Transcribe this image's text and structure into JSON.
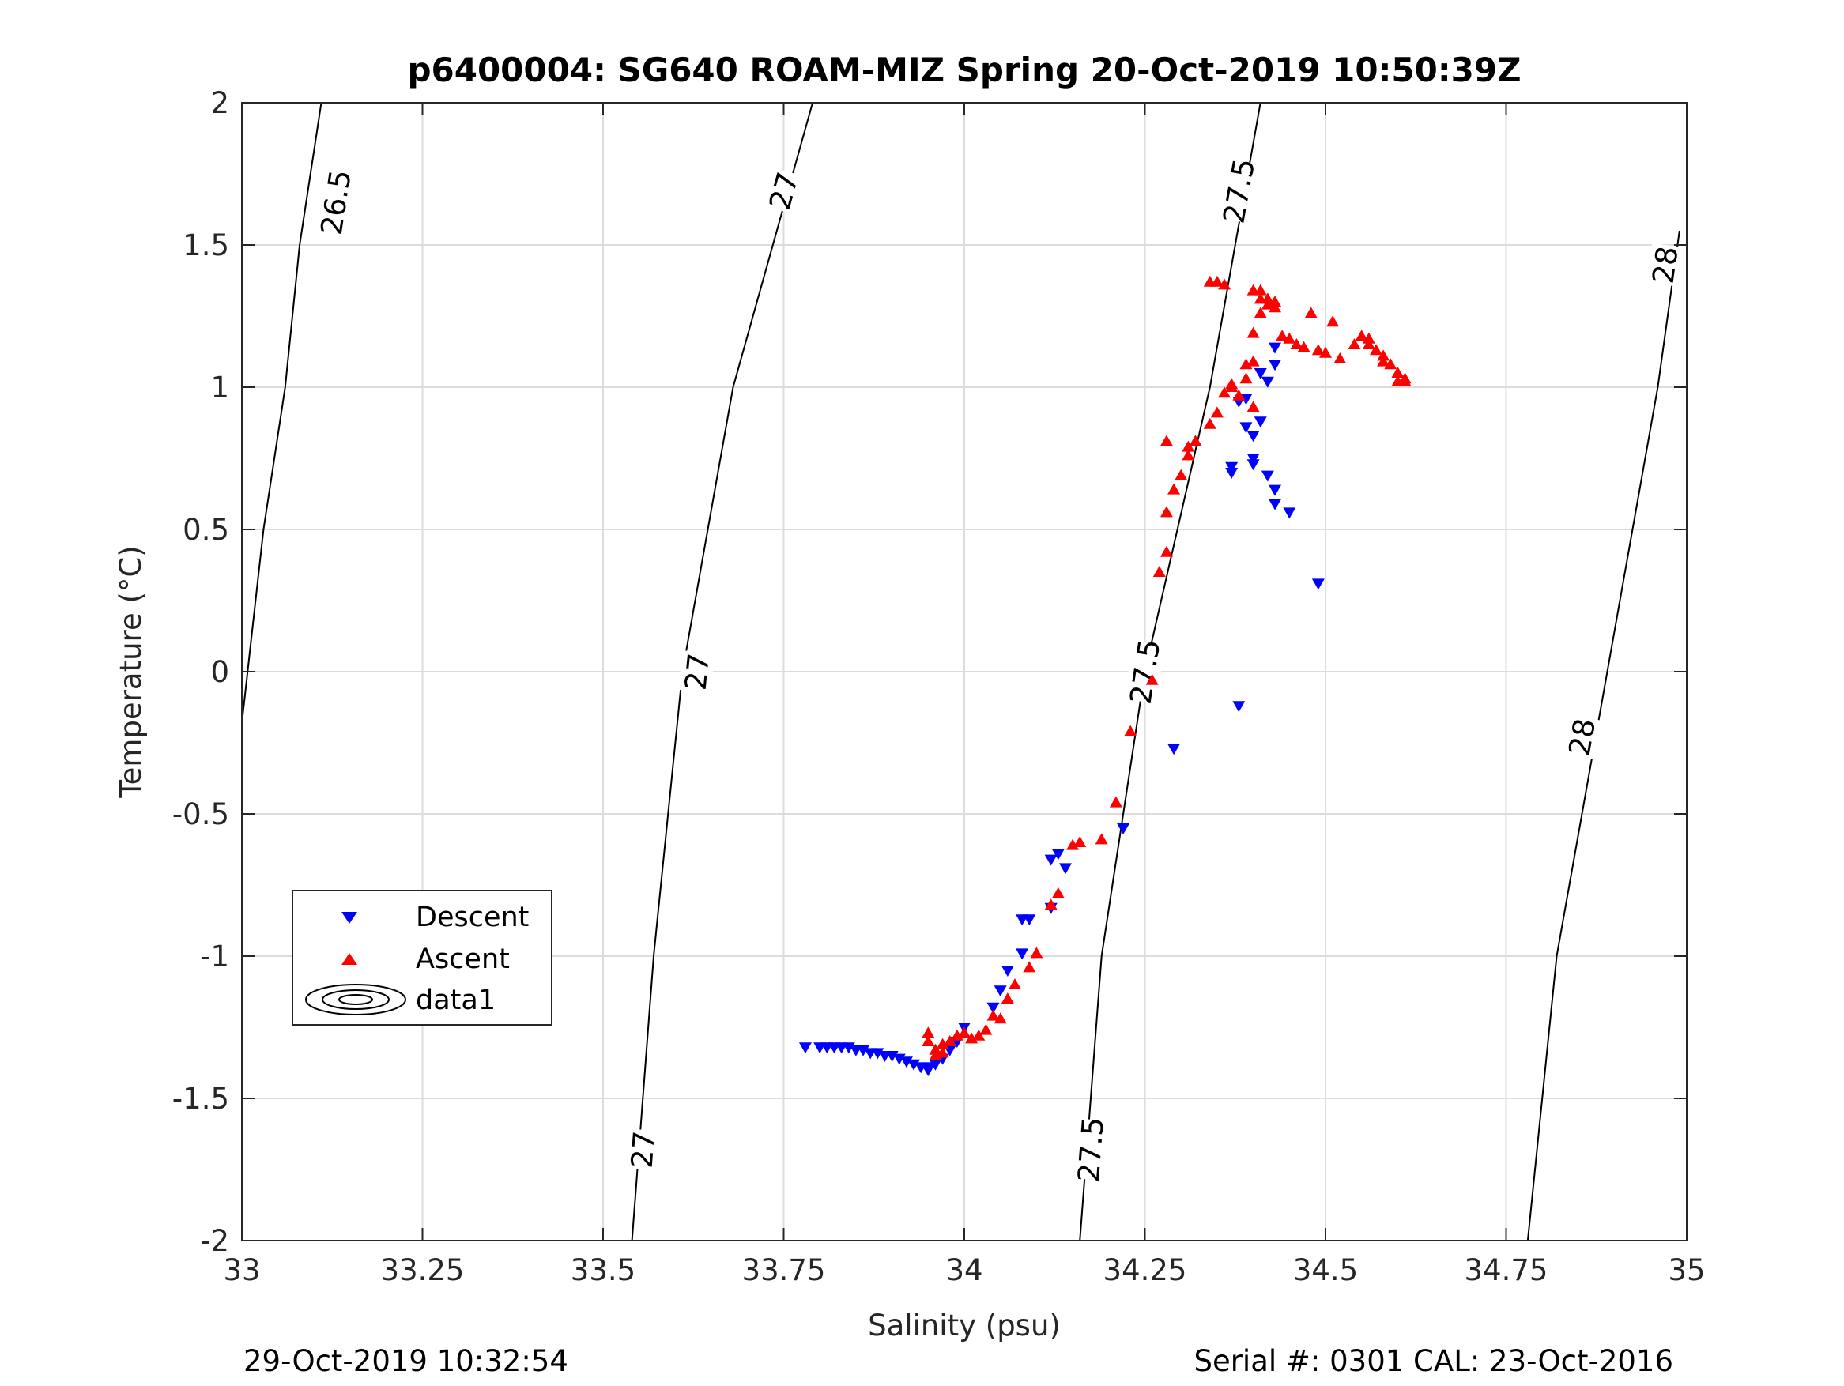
{
  "chart_data": {
    "type": "scatter",
    "title": "p6400004: SG640 ROAM-MIZ Spring 20-Oct-2019 10:50:39Z",
    "xlabel": "Salinity (psu)",
    "ylabel": "Temperature (°C)",
    "xlim": [
      33,
      35
    ],
    "ylim": [
      -2,
      2
    ],
    "xticks": [
      33,
      33.25,
      33.5,
      33.75,
      34,
      34.25,
      34.5,
      34.75,
      35
    ],
    "xtick_labels": [
      "33",
      "33.25",
      "33.5",
      "33.75",
      "34",
      "34.25",
      "34.5",
      "34.75",
      "35"
    ],
    "yticks": [
      -2,
      -1.5,
      -1,
      -0.5,
      0,
      0.5,
      1,
      1.5,
      2
    ],
    "ytick_labels": [
      "-2",
      "-1.5",
      "-1",
      "-0.5",
      "0",
      "0.5",
      "1",
      "1.5",
      "2"
    ],
    "grid": true,
    "legend_position": "lower-left",
    "footer_left": "29-Oct-2019 10:32:54",
    "footer_right": "Serial #: 0301  CAL: 23-Oct-2016",
    "series": [
      {
        "name": "Descent",
        "marker": "triangle-down",
        "color": "#0000ff",
        "points": [
          [
            33.78,
            -1.32
          ],
          [
            33.8,
            -1.32
          ],
          [
            33.81,
            -1.32
          ],
          [
            33.82,
            -1.32
          ],
          [
            33.83,
            -1.32
          ],
          [
            33.84,
            -1.32
          ],
          [
            33.85,
            -1.33
          ],
          [
            33.86,
            -1.33
          ],
          [
            33.87,
            -1.34
          ],
          [
            33.88,
            -1.34
          ],
          [
            33.89,
            -1.35
          ],
          [
            33.9,
            -1.35
          ],
          [
            33.91,
            -1.36
          ],
          [
            33.92,
            -1.37
          ],
          [
            33.93,
            -1.38
          ],
          [
            33.94,
            -1.39
          ],
          [
            33.95,
            -1.39
          ],
          [
            33.95,
            -1.4
          ],
          [
            33.96,
            -1.38
          ],
          [
            33.97,
            -1.36
          ],
          [
            33.98,
            -1.33
          ],
          [
            33.99,
            -1.3
          ],
          [
            34.0,
            -1.25
          ],
          [
            34.04,
            -1.18
          ],
          [
            34.05,
            -1.12
          ],
          [
            34.06,
            -1.05
          ],
          [
            34.08,
            -0.99
          ],
          [
            34.08,
            -0.87
          ],
          [
            34.09,
            -0.87
          ],
          [
            34.12,
            -0.83
          ],
          [
            34.12,
            -0.66
          ],
          [
            34.13,
            -0.64
          ],
          [
            34.14,
            -0.69
          ],
          [
            34.22,
            -0.55
          ],
          [
            34.29,
            -0.27
          ],
          [
            34.38,
            -0.12
          ],
          [
            34.38,
            0.95
          ],
          [
            34.39,
            0.96
          ],
          [
            34.39,
            0.86
          ],
          [
            34.4,
            0.83
          ],
          [
            34.41,
            0.88
          ],
          [
            34.4,
            0.75
          ],
          [
            34.4,
            0.73
          ],
          [
            34.37,
            0.72
          ],
          [
            34.37,
            0.7
          ],
          [
            34.42,
            0.69
          ],
          [
            34.43,
            0.64
          ],
          [
            34.43,
            0.59
          ],
          [
            34.45,
            0.56
          ],
          [
            34.41,
            1.05
          ],
          [
            34.42,
            1.02
          ],
          [
            34.43,
            1.08
          ],
          [
            34.43,
            1.14
          ],
          [
            34.49,
            0.31
          ]
        ]
      },
      {
        "name": "Ascent",
        "marker": "triangle-up",
        "color": "#ff0000",
        "points": [
          [
            33.95,
            -1.27
          ],
          [
            33.95,
            -1.3
          ],
          [
            33.96,
            -1.33
          ],
          [
            33.96,
            -1.35
          ],
          [
            33.97,
            -1.34
          ],
          [
            33.97,
            -1.31
          ],
          [
            33.98,
            -1.3
          ],
          [
            33.99,
            -1.28
          ],
          [
            34.0,
            -1.27
          ],
          [
            34.01,
            -1.29
          ],
          [
            34.02,
            -1.28
          ],
          [
            34.03,
            -1.26
          ],
          [
            34.04,
            -1.21
          ],
          [
            34.05,
            -1.22
          ],
          [
            34.06,
            -1.15
          ],
          [
            34.07,
            -1.1
          ],
          [
            34.09,
            -1.04
          ],
          [
            34.1,
            -0.99
          ],
          [
            34.12,
            -0.82
          ],
          [
            34.13,
            -0.78
          ],
          [
            34.15,
            -0.61
          ],
          [
            34.16,
            -0.6
          ],
          [
            34.19,
            -0.59
          ],
          [
            34.21,
            -0.46
          ],
          [
            34.23,
            -0.21
          ],
          [
            34.26,
            -0.03
          ],
          [
            34.27,
            0.35
          ],
          [
            34.28,
            0.42
          ],
          [
            34.28,
            0.56
          ],
          [
            34.29,
            0.64
          ],
          [
            34.3,
            0.69
          ],
          [
            34.31,
            0.76
          ],
          [
            34.31,
            0.79
          ],
          [
            34.32,
            0.81
          ],
          [
            34.28,
            0.81
          ],
          [
            34.34,
            0.87
          ],
          [
            34.35,
            0.91
          ],
          [
            34.36,
            0.98
          ],
          [
            34.37,
            1.01
          ],
          [
            34.37,
            1.0
          ],
          [
            34.38,
            0.97
          ],
          [
            34.39,
            1.03
          ],
          [
            34.39,
            1.08
          ],
          [
            34.4,
            1.09
          ],
          [
            34.4,
            1.19
          ],
          [
            34.41,
            1.26
          ],
          [
            34.42,
            1.29
          ],
          [
            34.43,
            1.3
          ],
          [
            34.41,
            1.31
          ],
          [
            34.4,
            1.34
          ],
          [
            34.41,
            1.34
          ],
          [
            34.42,
            1.31
          ],
          [
            34.43,
            1.28
          ],
          [
            34.44,
            1.18
          ],
          [
            34.45,
            1.17
          ],
          [
            34.46,
            1.15
          ],
          [
            34.47,
            1.14
          ],
          [
            34.49,
            1.13
          ],
          [
            34.5,
            1.12
          ],
          [
            34.52,
            1.1
          ],
          [
            34.55,
            1.18
          ],
          [
            34.56,
            1.17
          ],
          [
            34.56,
            1.15
          ],
          [
            34.57,
            1.13
          ],
          [
            34.58,
            1.11
          ],
          [
            34.58,
            1.09
          ],
          [
            34.59,
            1.08
          ],
          [
            34.6,
            1.05
          ],
          [
            34.61,
            1.03
          ],
          [
            34.6,
            1.02
          ],
          [
            34.61,
            1.02
          ],
          [
            34.35,
            1.37
          ],
          [
            34.36,
            1.36
          ],
          [
            34.34,
            1.37
          ],
          [
            34.48,
            1.26
          ],
          [
            34.51,
            1.23
          ],
          [
            34.54,
            1.15
          ],
          [
            34.4,
            0.93
          ]
        ]
      }
    ],
    "isopycnals": [
      {
        "label": "26.5",
        "points": [
          [
            33.0,
            -0.18
          ],
          [
            33.03,
            0.5
          ],
          [
            33.06,
            1.0
          ],
          [
            33.08,
            1.5
          ],
          [
            33.11,
            2.0
          ]
        ],
        "label_positions": [
          [
            33.13,
            1.65
          ]
        ]
      },
      {
        "label": "27",
        "points": [
          [
            33.54,
            -2.0
          ],
          [
            33.57,
            -1.0
          ],
          [
            33.61,
            0.0
          ],
          [
            33.68,
            1.0
          ],
          [
            33.79,
            2.0
          ]
        ],
        "label_positions": [
          [
            33.555,
            -1.68
          ],
          [
            33.63,
            0.0
          ],
          [
            33.75,
            1.69
          ]
        ]
      },
      {
        "label": "27.5",
        "points": [
          [
            34.16,
            -2.0
          ],
          [
            34.19,
            -1.0
          ],
          [
            34.25,
            0.0
          ],
          [
            34.34,
            1.0
          ],
          [
            34.41,
            2.0
          ]
        ],
        "label_positions": [
          [
            34.175,
            -1.68
          ],
          [
            34.25,
            0.0
          ],
          [
            34.38,
            1.69
          ]
        ]
      },
      {
        "label": "28",
        "points": [
          [
            34.78,
            -2.0
          ],
          [
            34.82,
            -1.0
          ],
          [
            34.89,
            0.0
          ],
          [
            34.96,
            1.0
          ],
          [
            34.99,
            1.55
          ]
        ],
        "label_positions": [
          [
            34.855,
            -0.23
          ],
          [
            34.97,
            1.43
          ]
        ]
      }
    ]
  },
  "legend": {
    "items": [
      {
        "label": "Descent",
        "marker": "triangle-down",
        "color": "#0000ff"
      },
      {
        "label": "Ascent",
        "marker": "triangle-up",
        "color": "#ff0000"
      },
      {
        "label": "data1",
        "marker": "contour",
        "color": "#000000"
      }
    ]
  }
}
